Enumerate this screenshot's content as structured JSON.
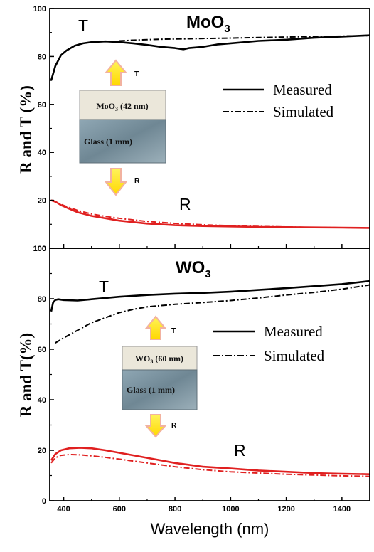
{
  "chart_data": [
    {
      "type": "line",
      "title": "MoO3",
      "ylabel": "R and T (%)",
      "xlabel": "",
      "xlim": [
        350,
        1500
      ],
      "ylim": [
        0,
        100
      ],
      "xticks": [
        "400",
        "600",
        "800",
        "1000",
        "1200",
        "1400"
      ],
      "yticks": [
        "0",
        "20",
        "40",
        "60",
        "80",
        "100"
      ],
      "curve_labels": {
        "T": "T",
        "R": "R"
      },
      "legend": {
        "placement": "right",
        "measured": "Measured",
        "simulated": "Simulated"
      },
      "inset": {
        "film": "MoO3 (42 nm)",
        "film_main": "MoO",
        "film_sub": "3",
        "film_rest": " (42 nm)",
        "substrate": "Glass (1 mm)",
        "arrow_up": "T",
        "arrow_down": "R"
      },
      "colors": {
        "T": "#000000",
        "R": "#e02020",
        "film": "#ece8dc",
        "glass": "#8aa1ad",
        "arrow": "#ffe000",
        "arrow_outline": "#f0b4a0"
      },
      "series": [
        {
          "name": "Measured",
          "quantity": "T",
          "style": "solid",
          "x": [
            355,
            370,
            390,
            410,
            440,
            470,
            500,
            550,
            600,
            650,
            700,
            750,
            800,
            830,
            850,
            900,
            950,
            1000,
            1100,
            1200,
            1300,
            1400,
            1500
          ],
          "y": [
            70,
            76,
            80.5,
            82.5,
            84.5,
            85.5,
            86,
            86.3,
            86,
            85.5,
            84.8,
            84,
            83.5,
            83,
            83.5,
            84,
            85,
            85.5,
            86.5,
            87,
            87.8,
            88.3,
            88.8
          ]
        },
        {
          "name": "Simulated",
          "quantity": "T",
          "style": "dashdot",
          "x": [
            600,
            650,
            700,
            750,
            800,
            850,
            900,
            1000,
            1100,
            1200,
            1300,
            1400,
            1500
          ],
          "y": [
            86.5,
            86.8,
            87,
            87.2,
            87.3,
            87.4,
            87.5,
            87.7,
            87.9,
            88.1,
            88.3,
            88.5,
            88.7
          ]
        },
        {
          "name": "Measured",
          "quantity": "R",
          "style": "solid",
          "x": [
            355,
            370,
            390,
            420,
            450,
            500,
            550,
            600,
            700,
            800,
            900,
            1000,
            1100,
            1200,
            1300,
            1400,
            1500
          ],
          "y": [
            20,
            19.5,
            18,
            16.5,
            15,
            13.5,
            12.5,
            11.5,
            10.3,
            9.6,
            9.3,
            9.1,
            8.9,
            8.8,
            8.7,
            8.6,
            8.5
          ]
        },
        {
          "name": "Simulated",
          "quantity": "R",
          "style": "dashdot",
          "x": [
            355,
            370,
            390,
            420,
            450,
            500,
            550,
            600,
            700,
            800,
            900,
            1000,
            1100,
            1200,
            1300,
            1400,
            1500
          ],
          "y": [
            20,
            19.3,
            18.3,
            17,
            15.8,
            14.3,
            13.3,
            12.5,
            11.2,
            10.4,
            9.8,
            9.4,
            9.1,
            8.9,
            8.7,
            8.6,
            8.5
          ]
        }
      ]
    },
    {
      "type": "line",
      "title": "WO3",
      "ylabel": "R and T(%)",
      "xlabel": "Wavelength (nm)",
      "xlim": [
        350,
        1500
      ],
      "ylim": [
        0,
        100
      ],
      "xticks": [
        "400",
        "600",
        "800",
        "1000",
        "1200",
        "1400"
      ],
      "yticks": [
        "0",
        "20",
        "40",
        "60",
        "80",
        "100"
      ],
      "curve_labels": {
        "T": "T",
        "R": "R"
      },
      "legend": {
        "placement": "right",
        "measured": "Measured",
        "simulated": "Simulated"
      },
      "inset": {
        "film": "WO3 (60 nm)",
        "film_main": "WO",
        "film_sub": "3",
        "film_rest": " (60 nm)",
        "substrate": "Glass (1 mm)",
        "arrow_up": "T",
        "arrow_down": "R"
      },
      "colors": {
        "T": "#000000",
        "R": "#e02020",
        "film": "#ece8dc",
        "glass": "#8aa1ad",
        "arrow": "#ffe000",
        "arrow_outline": "#f0b4a0"
      },
      "series": [
        {
          "name": "Measured",
          "quantity": "T",
          "style": "solid",
          "x": [
            355,
            362,
            370,
            380,
            400,
            450,
            500,
            600,
            700,
            800,
            900,
            1000,
            1100,
            1200,
            1300,
            1400,
            1500
          ],
          "y": [
            75,
            78.5,
            79.5,
            79.8,
            79.5,
            79.3,
            79.8,
            80.8,
            81.5,
            82,
            82.3,
            82.8,
            83.5,
            84.2,
            85,
            85.8,
            87
          ]
        },
        {
          "name": "Simulated",
          "quantity": "T",
          "style": "dashdot",
          "x": [
            370,
            400,
            450,
            500,
            550,
            600,
            650,
            700,
            750,
            800,
            900,
            1000,
            1100,
            1200,
            1300,
            1400,
            1500
          ],
          "y": [
            62.5,
            64.5,
            67.5,
            70.5,
            72.5,
            74.5,
            75.8,
            76.8,
            77.3,
            77.8,
            78.5,
            79.3,
            80.3,
            81.5,
            82.5,
            83.8,
            85.5
          ]
        },
        {
          "name": "Measured",
          "quantity": "R",
          "style": "solid",
          "x": [
            355,
            370,
            390,
            420,
            460,
            500,
            550,
            600,
            700,
            800,
            900,
            1000,
            1100,
            1200,
            1300,
            1400,
            1500
          ],
          "y": [
            16,
            18.5,
            20,
            20.8,
            21,
            20.8,
            20,
            19,
            17,
            15,
            13.5,
            12.8,
            12,
            11.5,
            11,
            10.7,
            10.5
          ]
        },
        {
          "name": "Simulated",
          "quantity": "R",
          "style": "dashdot",
          "x": [
            355,
            370,
            390,
            420,
            460,
            500,
            550,
            600,
            700,
            800,
            900,
            1000,
            1100,
            1200,
            1300,
            1400,
            1500
          ],
          "y": [
            15,
            17,
            18,
            18.3,
            18.2,
            17.8,
            17.2,
            16.5,
            15,
            13.5,
            12.3,
            11.5,
            11,
            10.5,
            10.2,
            9.9,
            9.7
          ]
        }
      ]
    }
  ]
}
